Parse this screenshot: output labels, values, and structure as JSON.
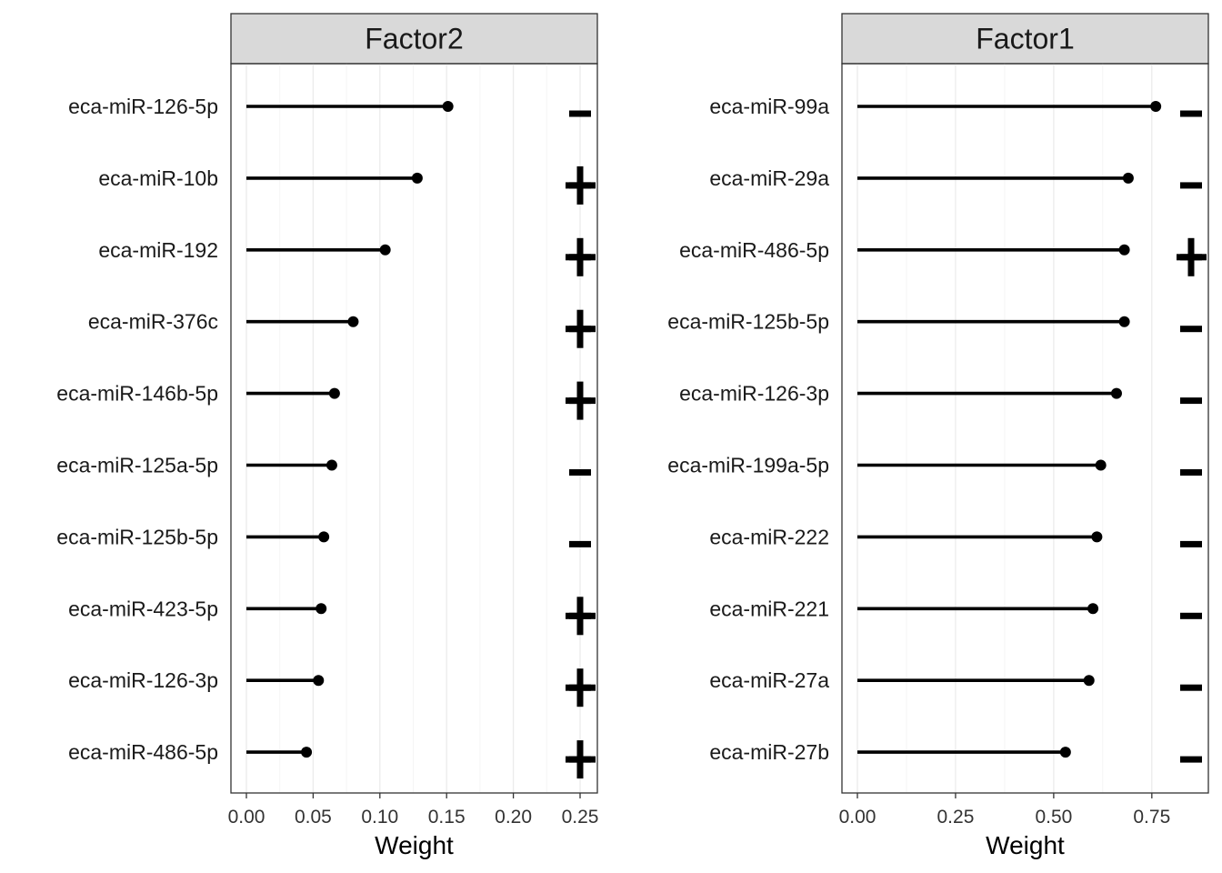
{
  "chart_data": [
    {
      "type": "bar",
      "title": "Factor2",
      "xlabel": "Weight",
      "xlim": [
        0,
        0.25
      ],
      "xticks": [
        "0.00",
        "0.05",
        "0.10",
        "0.15",
        "0.20",
        "0.25"
      ],
      "grid": true,
      "features": [
        {
          "label": "eca-miR-126-5p",
          "value": 0.151,
          "sign": "-"
        },
        {
          "label": "eca-miR-10b",
          "value": 0.128,
          "sign": "+"
        },
        {
          "label": "eca-miR-192",
          "value": 0.104,
          "sign": "+"
        },
        {
          "label": "eca-miR-376c",
          "value": 0.08,
          "sign": "+"
        },
        {
          "label": "eca-miR-146b-5p",
          "value": 0.066,
          "sign": "+"
        },
        {
          "label": "eca-miR-125a-5p",
          "value": 0.064,
          "sign": "-"
        },
        {
          "label": "eca-miR-125b-5p",
          "value": 0.058,
          "sign": "-"
        },
        {
          "label": "eca-miR-423-5p",
          "value": 0.056,
          "sign": "+"
        },
        {
          "label": "eca-miR-126-3p",
          "value": 0.054,
          "sign": "+"
        },
        {
          "label": "eca-miR-486-5p",
          "value": 0.045,
          "sign": "+"
        }
      ]
    },
    {
      "type": "bar",
      "title": "Factor1",
      "xlabel": "Weight",
      "xlim": [
        0,
        0.85
      ],
      "xticks": [
        "0.00",
        "0.25",
        "0.50",
        "0.75"
      ],
      "grid": true,
      "features": [
        {
          "label": "eca-miR-99a",
          "value": 0.76,
          "sign": "-"
        },
        {
          "label": "eca-miR-29a",
          "value": 0.69,
          "sign": "-"
        },
        {
          "label": "eca-miR-486-5p",
          "value": 0.68,
          "sign": "+"
        },
        {
          "label": "eca-miR-125b-5p",
          "value": 0.68,
          "sign": "-"
        },
        {
          "label": "eca-miR-126-3p",
          "value": 0.66,
          "sign": "-"
        },
        {
          "label": "eca-miR-199a-5p",
          "value": 0.62,
          "sign": "-"
        },
        {
          "label": "eca-miR-222",
          "value": 0.61,
          "sign": "-"
        },
        {
          "label": "eca-miR-221",
          "value": 0.6,
          "sign": "-"
        },
        {
          "label": "eca-miR-27a",
          "value": 0.59,
          "sign": "-"
        },
        {
          "label": "eca-miR-27b",
          "value": 0.53,
          "sign": "-"
        }
      ]
    }
  ],
  "colors": {
    "strip_fill": "#d9d9d9",
    "panel_border": "#333333",
    "grid_major": "#ebebeb",
    "grid_minor": "#f5f5f5",
    "mark": "#000000"
  }
}
